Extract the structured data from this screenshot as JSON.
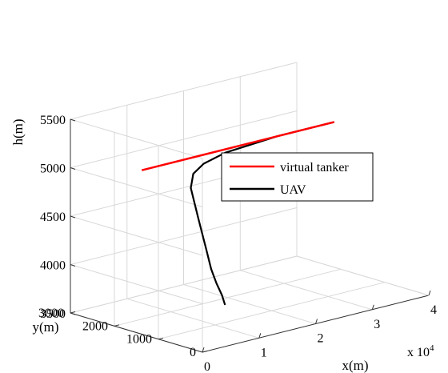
{
  "chart_data": {
    "type": "line3d",
    "xlabel": "x(m)",
    "ylabel": "y(m)",
    "zlabel": "h(m)",
    "x_exponent_label": "x 10",
    "x_exponent_power": "4",
    "xlim": [
      0,
      40000
    ],
    "ylim": [
      0,
      3000
    ],
    "zlim": [
      3500,
      5500
    ],
    "x_ticks": [
      0,
      10000,
      20000,
      30000,
      40000
    ],
    "x_tick_labels": [
      "0",
      "1",
      "2",
      "3",
      "4"
    ],
    "y_ticks": [
      0,
      1000,
      2000,
      3000
    ],
    "y_tick_labels": [
      "0",
      "1000",
      "2000",
      "3000"
    ],
    "z_ticks": [
      3500,
      4000,
      4500,
      5000,
      5500
    ],
    "z_tick_labels": [
      "3500",
      "4000",
      "4500",
      "5000",
      "5500"
    ],
    "grid": true,
    "legend_position": "center-right",
    "series": [
      {
        "name": "virtual tanker",
        "color": "#ff0000",
        "x": [
          6000,
          40000
        ],
        "y": [
          2150,
          2150
        ],
        "z": [
          5000,
          5000
        ]
      },
      {
        "name": "UAV",
        "color": "#000000",
        "x": [
          4000,
          5000,
          6000,
          7000,
          8000,
          9000,
          10000,
          12000,
          15000,
          20000,
          30000,
          40000
        ],
        "y": [
          0,
          200,
          450,
          700,
          950,
          1250,
          1550,
          1750,
          1900,
          2050,
          2150,
          2150
        ],
        "z": [
          3930,
          3990,
          4060,
          4160,
          4330,
          4580,
          4840,
          4930,
          4970,
          4990,
          5000,
          5000
        ]
      }
    ]
  }
}
